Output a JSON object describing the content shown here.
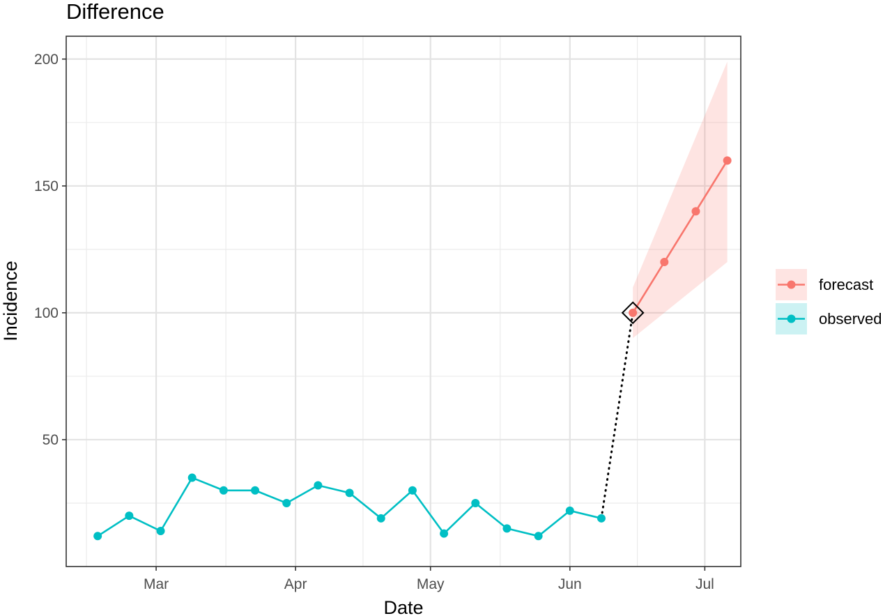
{
  "chart_data": {
    "type": "line",
    "title": "Difference",
    "xlabel": "Date",
    "ylabel": "Incidence",
    "xlim": [
      "2020-02-10",
      "2020-07-09"
    ],
    "ylim": [
      0,
      209
    ],
    "x_ticks": [
      {
        "date": "2020-03-01",
        "label": "Mar"
      },
      {
        "date": "2020-04-01",
        "label": "Apr"
      },
      {
        "date": "2020-05-01",
        "label": "May"
      },
      {
        "date": "2020-06-01",
        "label": "Jun"
      },
      {
        "date": "2020-07-01",
        "label": "Jul"
      }
    ],
    "y_ticks": [
      50,
      100,
      150,
      200
    ],
    "grid": true,
    "legend_position": "right",
    "series": [
      {
        "name": "observed",
        "color": "#00BFC4",
        "points": [
          {
            "x": "2020-02-17",
            "y": 12
          },
          {
            "x": "2020-02-24",
            "y": 20
          },
          {
            "x": "2020-03-02",
            "y": 14
          },
          {
            "x": "2020-03-09",
            "y": 35
          },
          {
            "x": "2020-03-16",
            "y": 30
          },
          {
            "x": "2020-03-23",
            "y": 30
          },
          {
            "x": "2020-03-30",
            "y": 25
          },
          {
            "x": "2020-04-06",
            "y": 32
          },
          {
            "x": "2020-04-13",
            "y": 29
          },
          {
            "x": "2020-04-20",
            "y": 19
          },
          {
            "x": "2020-04-27",
            "y": 30
          },
          {
            "x": "2020-05-04",
            "y": 13
          },
          {
            "x": "2020-05-11",
            "y": 25
          },
          {
            "x": "2020-05-18",
            "y": 15
          },
          {
            "x": "2020-05-25",
            "y": 12
          },
          {
            "x": "2020-06-01",
            "y": 22
          },
          {
            "x": "2020-06-08",
            "y": 19
          }
        ]
      },
      {
        "name": "forecast",
        "color": "#F8766D",
        "points": [
          {
            "x": "2020-06-15",
            "y": 100
          },
          {
            "x": "2020-06-22",
            "y": 120
          },
          {
            "x": "2020-06-29",
            "y": 140
          },
          {
            "x": "2020-07-06",
            "y": 160
          }
        ],
        "interval": {
          "color": "#F8766D",
          "lower": [
            90,
            120
          ],
          "upper": [
            110,
            199
          ],
          "x": [
            "2020-06-15",
            "2020-07-06"
          ]
        }
      }
    ],
    "connector": {
      "from": {
        "x": "2020-06-08",
        "y": 19
      },
      "to": {
        "x": "2020-06-15",
        "y": 100
      },
      "style": "dotted"
    },
    "highlight": {
      "x": "2020-06-15",
      "y": 100,
      "shape": "diamond"
    }
  }
}
